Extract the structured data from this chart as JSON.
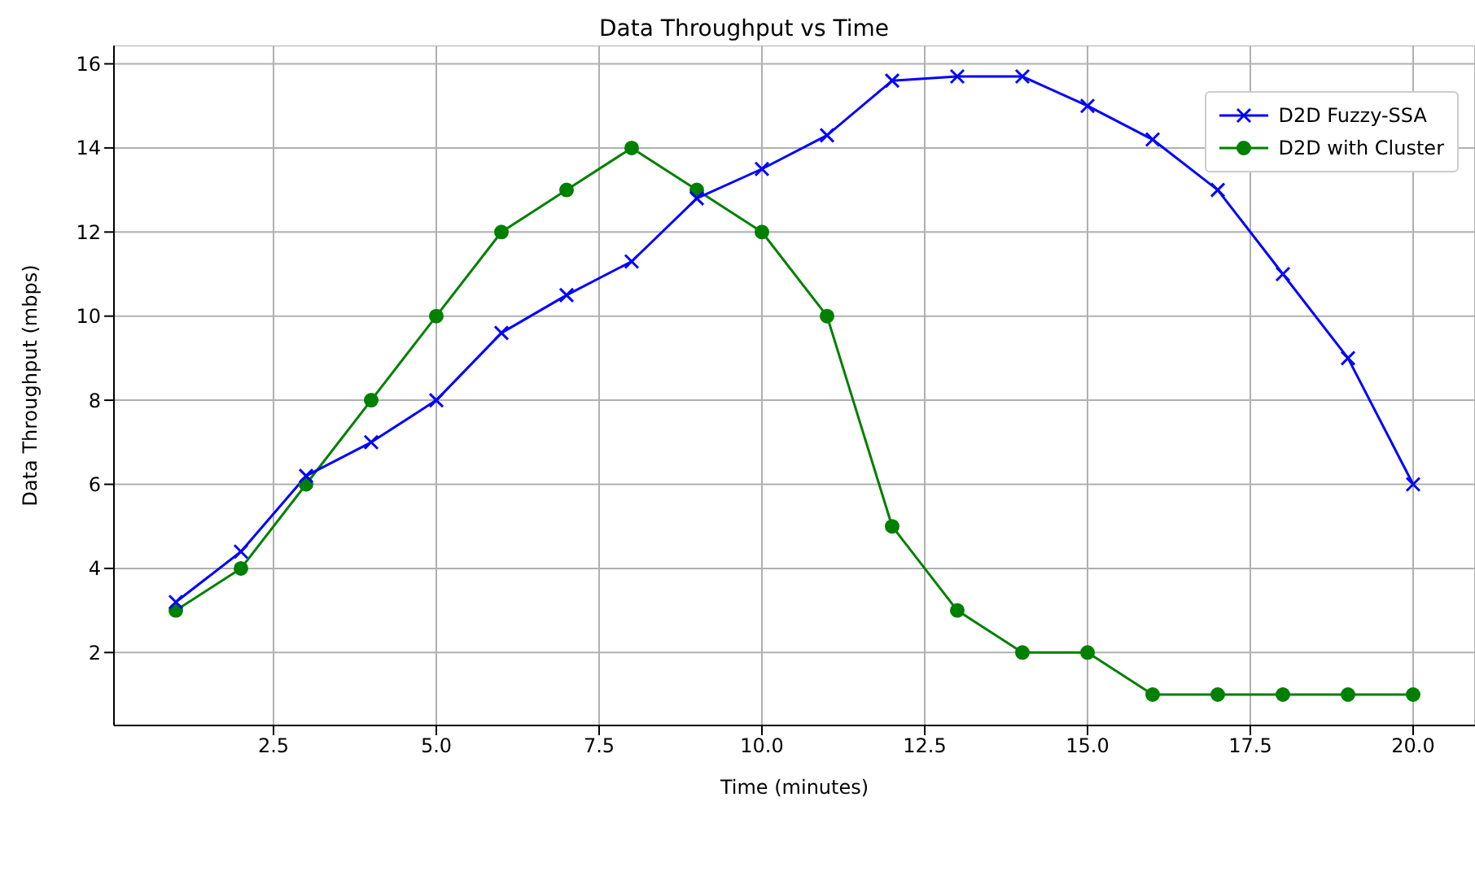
{
  "chart_data": {
    "type": "line",
    "title": "Data Throughput vs Time",
    "xlabel": "Time (minutes)",
    "ylabel": "Data Throughput (mbps)",
    "x": [
      1,
      2,
      3,
      4,
      5,
      6,
      7,
      8,
      9,
      10,
      11,
      12,
      13,
      14,
      15,
      16,
      17,
      18,
      19,
      20
    ],
    "series": [
      {
        "name": "D2D Fuzzy-SSA",
        "color": "#0000ff",
        "marker": "cross",
        "values": [
          3.2,
          4.4,
          6.2,
          7.0,
          8.0,
          9.6,
          10.5,
          11.3,
          12.8,
          13.5,
          14.3,
          15.6,
          15.7,
          15.7,
          15.0,
          14.2,
          13.0,
          11.0,
          9.0,
          6.0
        ]
      },
      {
        "name": "D2D with Cluster",
        "color": "#008000",
        "marker": "circle",
        "values": [
          3,
          4,
          6,
          8,
          10,
          12,
          13,
          14,
          13,
          12,
          10,
          5,
          3,
          2,
          2,
          1,
          1,
          1,
          1,
          1
        ]
      }
    ],
    "xlim": [
      0.05,
      20.95
    ],
    "ylim": [
      0.265,
      16.435
    ],
    "xticks": [
      {
        "value": 2.5,
        "label": "2.5"
      },
      {
        "value": 5,
        "label": "5.0"
      },
      {
        "value": 7.5,
        "label": "7.5"
      },
      {
        "value": 10,
        "label": "10.0"
      },
      {
        "value": 12.5,
        "label": "12.5"
      },
      {
        "value": 15,
        "label": "15.0"
      },
      {
        "value": 17.5,
        "label": "17.5"
      },
      {
        "value": 20,
        "label": "20.0"
      }
    ],
    "yticks": [
      2,
      4,
      6,
      8,
      10,
      12,
      14,
      16
    ],
    "grid": true,
    "legend": "top right",
    "line_style": "solid"
  }
}
